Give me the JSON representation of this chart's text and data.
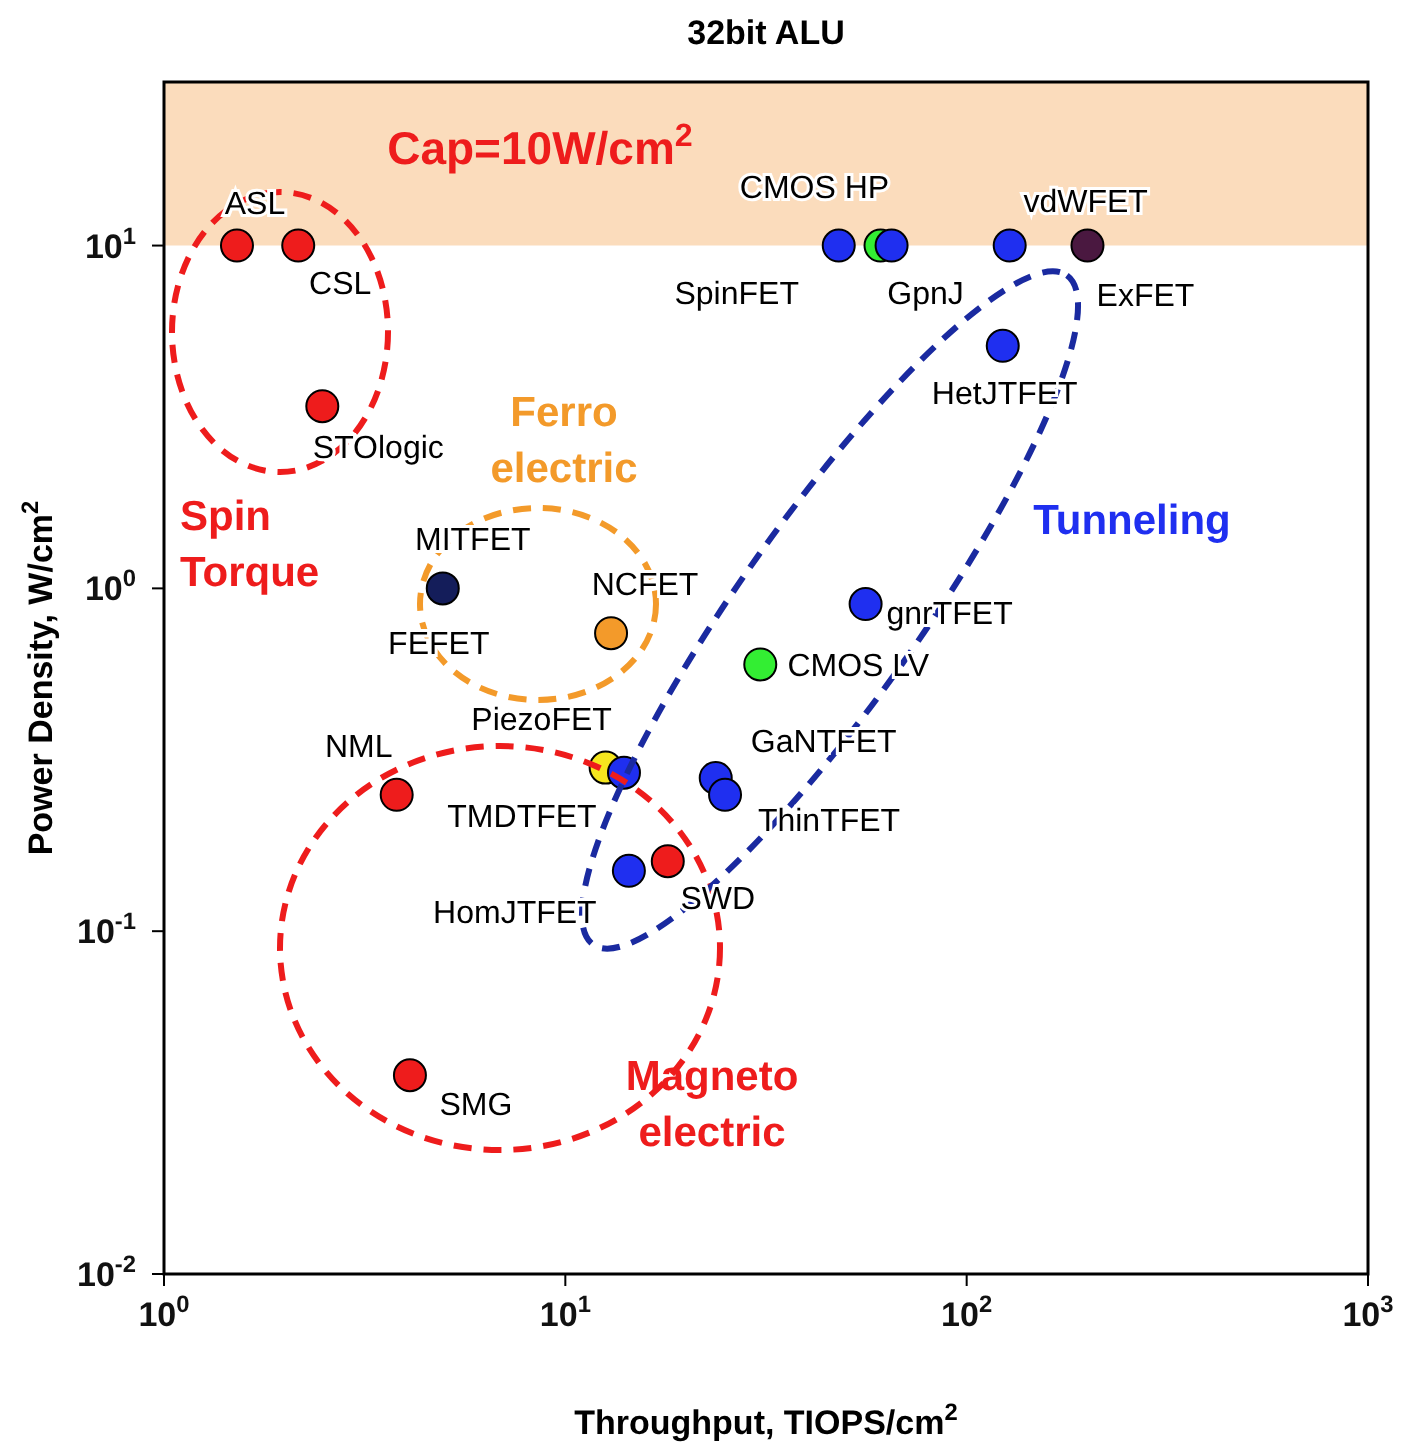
{
  "chart_data": {
    "type": "scatter",
    "title": "32bit ALU",
    "xlabel": "Throughput, TIOPS/cm$^{2}$",
    "ylabel": "Power Density, W/cm$^{2}$",
    "log": "xy",
    "marker": "circle",
    "grid": false,
    "legend": false,
    "xlim": [
      1,
      1000
    ],
    "xticks": [
      {
        "value": 1,
        "label": "10$^{0}$"
      },
      {
        "value": 10,
        "label": "10$^{1}$"
      },
      {
        "value": 100,
        "label": "10$^{2}$"
      },
      {
        "value": 1000,
        "label": "10$^{3}$"
      }
    ],
    "ylim": [
      0.01,
      30
    ],
    "yticks": [
      {
        "value": 0.01,
        "label": "10$^{-2}$"
      },
      {
        "value": 0.1,
        "label": "10$^{-1}$"
      },
      {
        "value": 1,
        "label": "10$^{0}$"
      },
      {
        "value": 10,
        "label": "10$^{1}$"
      }
    ],
    "bands": [
      {
        "axis": "y",
        "from": 10,
        "to": 30,
        "label": "Cap=10W/cm$^{2}$",
        "color": "#fbdcbc"
      }
    ],
    "series": [
      {
        "color": "#ee1c1c",
        "x": [
          1.52,
          2.16,
          2.48,
          3.8,
          18,
          4.1
        ],
        "values": [
          10,
          10,
          3.4,
          0.25,
          0.16,
          0.038
        ]
      },
      {
        "color": "#33ee33",
        "x": [
          61,
          30.6
        ],
        "values": [
          10,
          0.6
        ]
      },
      {
        "color": "#f39a2a",
        "x": [
          13
        ],
        "values": [
          0.74
        ]
      },
      {
        "color": "#f5e61e",
        "x": [
          12.6
        ],
        "values": [
          0.3
        ]
      },
      {
        "color": "#141d5a",
        "x": [
          4.95
        ],
        "values": [
          1.0
        ]
      },
      {
        "color": "#4a1840",
        "x": [
          200
        ],
        "values": [
          10
        ]
      },
      {
        "color": "#1f2ff0",
        "x": [
          48,
          65,
          128,
          123,
          56,
          23.7,
          25,
          14,
          14.4
        ],
        "values": [
          10,
          10,
          10,
          5.1,
          0.9,
          0.28,
          0.25,
          0.29,
          0.15
        ]
      }
    ],
    "annotations": [
      {
        "text": "ASL",
        "x": 1.52,
        "y": 10
      },
      {
        "text": "CSL",
        "x": 2.16,
        "y": 10
      },
      {
        "text": "STOlogic",
        "x": 2.48,
        "y": 3.4
      },
      {
        "text": "MITFET",
        "x": 4.95,
        "y": 1.0
      },
      {
        "text": "FEFET",
        "x": 4.95,
        "y": 1.0
      },
      {
        "text": "NCFET",
        "x": 13,
        "y": 0.74
      },
      {
        "text": "PiezoFET",
        "x": 12.6,
        "y": 0.3
      },
      {
        "text": "TMDTFET",
        "x": 14,
        "y": 0.29
      },
      {
        "text": "NML",
        "x": 3.8,
        "y": 0.25
      },
      {
        "text": "HomJTFET",
        "x": 14.4,
        "y": 0.15
      },
      {
        "text": "SWD",
        "x": 18,
        "y": 0.16
      },
      {
        "text": "GaNTFET",
        "x": 23.7,
        "y": 0.28
      },
      {
        "text": "ThinTFET",
        "x": 25,
        "y": 0.25
      },
      {
        "text": "SMG",
        "x": 4.1,
        "y": 0.038
      },
      {
        "text": "CMOS LV",
        "x": 30.6,
        "y": 0.6
      },
      {
        "text": "gnrTFET",
        "x": 56,
        "y": 0.9
      },
      {
        "text": "SpinFET",
        "x": 48,
        "y": 10
      },
      {
        "text": "CMOS HP",
        "x": 61,
        "y": 10
      },
      {
        "text": "GpnJ",
        "x": 65,
        "y": 10
      },
      {
        "text": "HetJTFET",
        "x": 123,
        "y": 5.1
      },
      {
        "text": "vdWFET",
        "x": 128,
        "y": 10
      },
      {
        "text": "ExFET",
        "x": 200,
        "y": 10
      },
      "Spin Torque",
      "Ferro electric",
      "Tunneling",
      "Magneto electric"
    ]
  }
}
